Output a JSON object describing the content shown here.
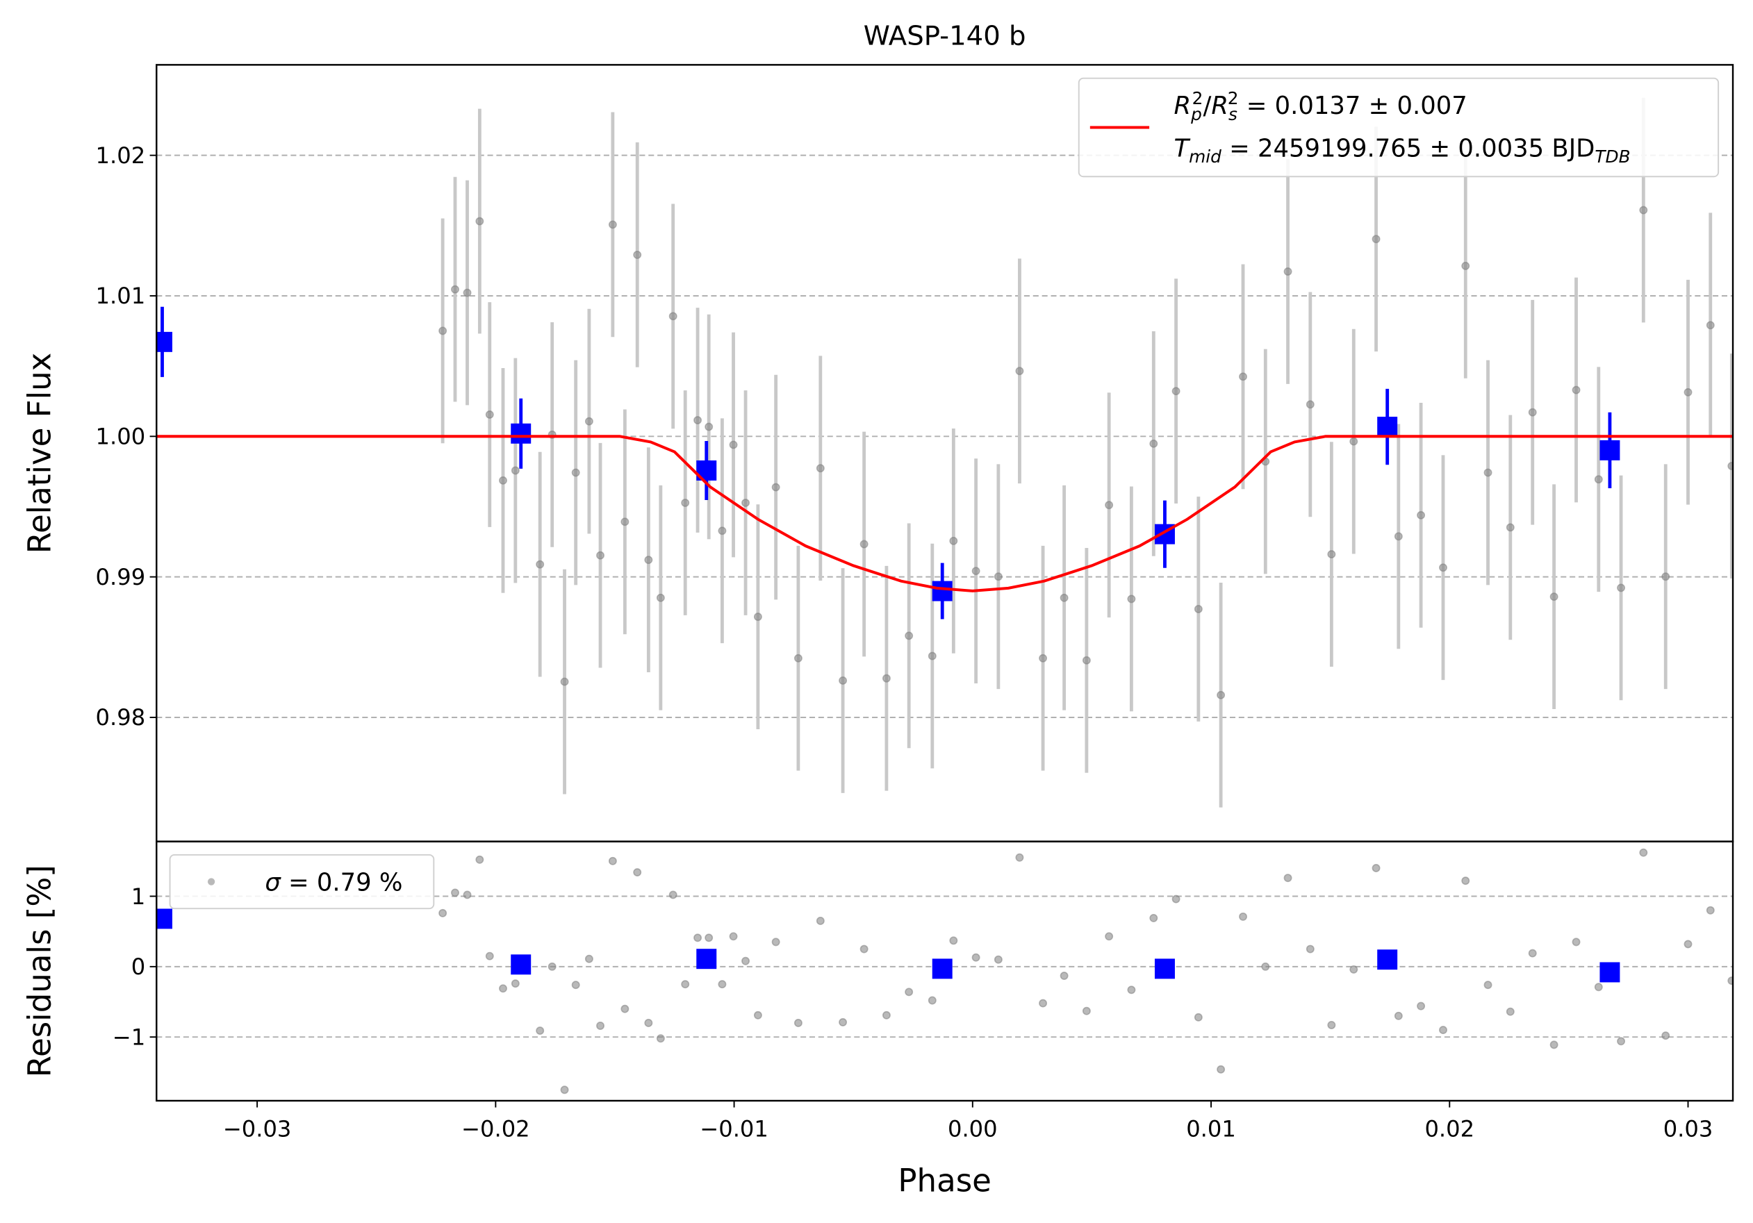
{
  "chart_data": [
    {
      "type": "scatter",
      "title": "WASP-140 b",
      "ylabel": "Relative Flux",
      "xlim": [
        -0.03422,
        0.03188
      ],
      "ylim": [
        0.97117,
        1.02644
      ],
      "yticks": [
        0.98,
        0.99,
        {
          "value": 1.0,
          "label": "1.00"
        },
        1.01,
        1.02
      ],
      "grid": true,
      "legend": "upper right",
      "series": [
        {
          "color": "#808080",
          "marker": "circle",
          "yerr": 0.008,
          "x": [
            -0.02222,
            -0.0217,
            -0.02119,
            -0.02067,
            -0.02025,
            -0.01969,
            -0.01917,
            -0.01814,
            -0.01763,
            -0.01711,
            -0.01664,
            -0.01608,
            -0.01561,
            -0.01509,
            -0.01458,
            -0.01406,
            -0.01359,
            -0.01308,
            -0.01256,
            -0.01205,
            -0.01153,
            -0.01106,
            -0.0105,
            -0.01003,
            -0.00952,
            -0.009,
            -0.00825,
            -0.00731,
            -0.00638,
            -0.00544,
            -0.00455,
            -0.00361,
            -0.00267,
            -0.00169,
            -0.0008,
            0.00014,
            0.00108,
            0.00197,
            0.00295,
            0.00384,
            0.00478,
            0.00572,
            0.00666,
            0.00759,
            0.00853,
            0.00947,
            0.01041,
            0.01134,
            0.01228,
            0.01322,
            0.01416,
            0.01505,
            0.01598,
            0.01692,
            0.01786,
            0.0188,
            0.01973,
            0.02067,
            0.02161,
            0.02255,
            0.02348,
            0.02438,
            0.02531,
            0.02625,
            0.02719,
            0.02813,
            0.02906,
            0.03,
            0.03094,
            0.03183
          ],
          "values": [
            1.00751,
            1.01046,
            1.01022,
            1.01531,
            1.00155,
            0.99686,
            0.99757,
            0.99089,
            1.00012,
            0.98254,
            0.99742,
            1.00107,
            0.99153,
            1.01507,
            0.99392,
            1.01292,
            0.99121,
            0.98851,
            1.00855,
            0.99527,
            1.00115,
            1.00068,
            0.99328,
            0.9994,
            0.99527,
            0.98716,
            0.99638,
            0.98421,
            0.99773,
            0.98262,
            0.99233,
            0.98278,
            0.98581,
            0.98437,
            0.99256,
            0.99042,
            0.99002,
            1.00465,
            0.98421,
            0.98851,
            0.98406,
            0.99511,
            0.98843,
            0.99948,
            1.00322,
            0.98771,
            0.98159,
            1.00425,
            0.99821,
            1.01173,
            1.00227,
            0.99161,
            0.99964,
            1.01404,
            0.99288,
            0.99439,
            0.99066,
            1.01213,
            0.99742,
            0.99352,
            1.00171,
            0.98859,
            1.0033,
            0.99694,
            0.98922,
            1.0161,
            0.99002,
            1.00314,
            1.00791,
            0.99789
          ]
        },
        {
          "color": "#0000ff",
          "marker": "square",
          "x": [
            -0.03398,
            -0.01894,
            -0.01116,
            -0.00127,
            0.00806,
            0.01739,
            0.02672
          ],
          "values": [
            1.00672,
            1.0002,
            0.99757,
            0.98899,
            0.99304,
            1.00068,
            0.99901
          ],
          "yerr": [
            0.0025,
            0.0025,
            0.0021,
            0.002,
            0.0024,
            0.0027,
            0.0027
          ]
        },
        {
          "color": "#ff0000",
          "marker": "line",
          "name": [
            [
              {
                "text": "R",
                "style": "italic"
              },
              {
                "text": "p",
                "style": "sub"
              },
              {
                "text": "2",
                "style": "sup"
              },
              {
                "text": "/",
                "style": "normal"
              },
              {
                "text": "R",
                "style": "italic"
              },
              {
                "text": "s",
                "style": "sub"
              },
              {
                "text": "2",
                "style": "sup"
              },
              {
                "text": " = 0.0137 ± 0.007",
                "style": "normal"
              }
            ],
            [
              {
                "text": "T",
                "style": "italic"
              },
              {
                "text": "mid",
                "style": "sub"
              },
              {
                "text": " = 2459199.765 ± 0.0035 BJD",
                "style": "normal"
              },
              {
                "text": "TDB",
                "style": "sub"
              }
            ]
          ],
          "x": [
            -0.0342,
            -0.0148,
            -0.0135,
            -0.0125,
            -0.011,
            -0.009,
            -0.007,
            -0.005,
            -0.003,
            -0.0015,
            0,
            0.0015,
            0.003,
            0.005,
            0.007,
            0.009,
            0.011,
            0.0125,
            0.0135,
            0.0148,
            0.0319
          ],
          "values": [
            1,
            1,
            0.9996,
            0.9989,
            0.9964,
            0.9941,
            0.9922,
            0.9908,
            0.9897,
            0.9892,
            0.989,
            0.9892,
            0.9897,
            0.9908,
            0.9922,
            0.9941,
            0.9964,
            0.9989,
            0.9996,
            1,
            1
          ]
        }
      ]
    },
    {
      "type": "scatter",
      "ylabel": "Residuals [%]",
      "xlabel": "Phase",
      "xlim": [
        -0.03422,
        0.03188
      ],
      "ylim": [
        -1.905,
        1.778
      ],
      "xticks": [
        {
          "value": -0.03,
          "label": "−0.03"
        },
        {
          "value": -0.02,
          "label": "−0.02"
        },
        {
          "value": -0.01,
          "label": "−0.01"
        },
        {
          "value": 0,
          "label": "0.00"
        },
        0.01,
        0.02,
        0.03
      ],
      "yticks": [
        {
          "value": -1,
          "label": "−1"
        },
        0,
        1
      ],
      "grid": true,
      "legend": "upper left",
      "series": [
        {
          "color": "#808080",
          "marker": "circle",
          "name": [
            [
              {
                "text": "σ",
                "style": "italic"
              },
              {
                "text": " = 0.79 %",
                "style": "normal"
              }
            ]
          ],
          "x": [
            -0.02222,
            -0.0217,
            -0.02119,
            -0.02067,
            -0.02025,
            -0.01969,
            -0.01917,
            -0.01814,
            -0.01763,
            -0.01711,
            -0.01664,
            -0.01608,
            -0.01561,
            -0.01509,
            -0.01458,
            -0.01406,
            -0.01359,
            -0.01308,
            -0.01256,
            -0.01205,
            -0.01153,
            -0.01106,
            -0.0105,
            -0.01003,
            -0.00952,
            -0.009,
            -0.00825,
            -0.00731,
            -0.00638,
            -0.00544,
            -0.00455,
            -0.00361,
            -0.00267,
            -0.00169,
            -0.0008,
            0.00014,
            0.00108,
            0.00197,
            0.00295,
            0.00384,
            0.00478,
            0.00572,
            0.00666,
            0.00759,
            0.00853,
            0.00947,
            0.01041,
            0.01134,
            0.01228,
            0.01322,
            0.01416,
            0.01505,
            0.01598,
            0.01692,
            0.01786,
            0.0188,
            0.01973,
            0.02067,
            0.02161,
            0.02255,
            0.02348,
            0.02438,
            0.02531,
            0.02625,
            0.02719,
            0.02813,
            0.02906,
            0.03,
            0.03094,
            0.03183
          ],
          "values": [
            0.76,
            1.05,
            1.02,
            1.52,
            0.15,
            -0.31,
            -0.24,
            -0.91,
            0.0,
            -1.75,
            -0.26,
            0.11,
            -0.84,
            1.5,
            -0.6,
            1.34,
            -0.8,
            -1.02,
            1.02,
            -0.25,
            0.41,
            0.41,
            -0.25,
            0.43,
            0.08,
            -0.69,
            0.35,
            -0.8,
            0.65,
            -0.79,
            0.25,
            -0.69,
            -0.36,
            -0.48,
            0.37,
            0.13,
            0.1,
            1.55,
            -0.52,
            -0.13,
            -0.63,
            0.43,
            -0.33,
            0.69,
            0.96,
            -0.72,
            -1.46,
            0.71,
            0.0,
            1.26,
            0.25,
            -0.83,
            -0.04,
            1.4,
            -0.7,
            -0.56,
            -0.9,
            1.22,
            -0.26,
            -0.64,
            0.19,
            -1.11,
            0.35,
            -0.29,
            -1.06,
            1.62,
            -0.98,
            0.32,
            0.8,
            -0.2
          ]
        },
        {
          "color": "#0000ff",
          "marker": "square",
          "x": [
            -0.03398,
            -0.01894,
            -0.01116,
            -0.00127,
            0.00806,
            0.01739,
            0.02672
          ],
          "values": [
            0.68,
            0.03,
            0.11,
            -0.03,
            -0.03,
            0.1,
            -0.08
          ]
        }
      ]
    }
  ]
}
